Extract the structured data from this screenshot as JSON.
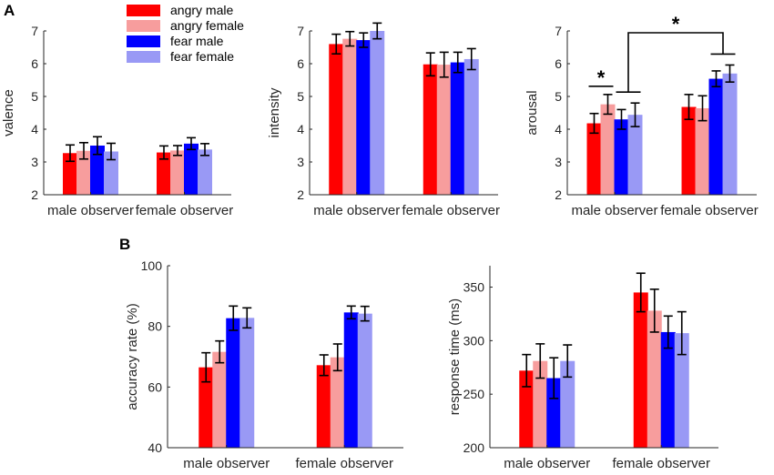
{
  "panel_labels": {
    "a": "A",
    "b": "B"
  },
  "legend": [
    {
      "label": "angry male",
      "color": "#ff0000"
    },
    {
      "label": "angry female",
      "color": "#f79d9d"
    },
    {
      "label": "fear male",
      "color": "#0000ff"
    },
    {
      "label": "fear female",
      "color": "#9999f5"
    }
  ],
  "significance_marker": "*",
  "chart_data": [
    {
      "type": "bar",
      "id": "valence",
      "ylabel": "valence",
      "ylim": [
        2,
        7
      ],
      "yticks": [
        2,
        3,
        4,
        5,
        6,
        7
      ],
      "categories": [
        "male observer",
        "female observer"
      ],
      "series": [
        {
          "name": "angry male",
          "values": [
            3.27,
            3.29
          ],
          "errors": [
            0.25,
            0.2
          ]
        },
        {
          "name": "angry female",
          "values": [
            3.34,
            3.35
          ],
          "errors": [
            0.25,
            0.15
          ]
        },
        {
          "name": "fear male",
          "values": [
            3.5,
            3.56
          ],
          "errors": [
            0.27,
            0.18
          ]
        },
        {
          "name": "fear female",
          "values": [
            3.32,
            3.38
          ],
          "errors": [
            0.25,
            0.18
          ]
        }
      ]
    },
    {
      "type": "bar",
      "id": "intensity",
      "ylabel": "intensity",
      "ylim": [
        2,
        7
      ],
      "yticks": [
        2,
        3,
        4,
        5,
        6,
        7
      ],
      "categories": [
        "male observer",
        "female observer"
      ],
      "series": [
        {
          "name": "angry male",
          "values": [
            6.6,
            5.98
          ],
          "errors": [
            0.3,
            0.35
          ]
        },
        {
          "name": "angry female",
          "values": [
            6.76,
            5.97
          ],
          "errors": [
            0.22,
            0.38
          ]
        },
        {
          "name": "fear male",
          "values": [
            6.72,
            6.04
          ],
          "errors": [
            0.22,
            0.31
          ]
        },
        {
          "name": "fear female",
          "values": [
            7.0,
            6.14
          ],
          "errors": [
            0.24,
            0.32
          ]
        }
      ]
    },
    {
      "type": "bar",
      "id": "arousal",
      "ylabel": "arousal",
      "ylim": [
        2,
        7
      ],
      "yticks": [
        2,
        3,
        4,
        5,
        6,
        7
      ],
      "categories": [
        "male observer",
        "female observer"
      ],
      "series": [
        {
          "name": "angry male",
          "values": [
            4.18,
            4.68
          ],
          "errors": [
            0.3,
            0.38
          ]
        },
        {
          "name": "angry female",
          "values": [
            4.76,
            4.64
          ],
          "errors": [
            0.3,
            0.38
          ]
        },
        {
          "name": "fear male",
          "values": [
            4.3,
            5.54
          ],
          "errors": [
            0.3,
            0.24
          ]
        },
        {
          "name": "fear female",
          "values": [
            4.44,
            5.7
          ],
          "errors": [
            0.36,
            0.26
          ]
        }
      ]
    },
    {
      "type": "bar",
      "id": "accuracy",
      "ylabel": "accuracy rate (%)",
      "ylim": [
        40,
        100
      ],
      "yticks": [
        40,
        60,
        80,
        100
      ],
      "categories": [
        "male observer",
        "female observer"
      ],
      "series": [
        {
          "name": "angry male",
          "values": [
            66.5,
            67.2
          ],
          "errors": [
            4.8,
            3.4
          ]
        },
        {
          "name": "angry female",
          "values": [
            71.6,
            69.8
          ],
          "errors": [
            3.6,
            4.4
          ]
        },
        {
          "name": "fear male",
          "values": [
            82.7,
            84.6
          ],
          "errors": [
            4.0,
            2.1
          ]
        },
        {
          "name": "fear female",
          "values": [
            82.8,
            84.2
          ],
          "errors": [
            3.3,
            2.4
          ]
        }
      ]
    },
    {
      "type": "bar",
      "id": "response-time",
      "ylabel": "response time (ms)",
      "ylim": [
        200,
        370
      ],
      "yticks": [
        200,
        250,
        300,
        350
      ],
      "categories": [
        "male observer",
        "female observer"
      ],
      "series": [
        {
          "name": "angry male",
          "values": [
            272,
            345
          ],
          "errors": [
            15,
            18
          ]
        },
        {
          "name": "angry female",
          "values": [
            281,
            328
          ],
          "errors": [
            16,
            20
          ]
        },
        {
          "name": "fear male",
          "values": [
            265,
            308
          ],
          "errors": [
            19,
            15
          ]
        },
        {
          "name": "fear female",
          "values": [
            281,
            307
          ],
          "errors": [
            15,
            20
          ]
        }
      ]
    }
  ]
}
